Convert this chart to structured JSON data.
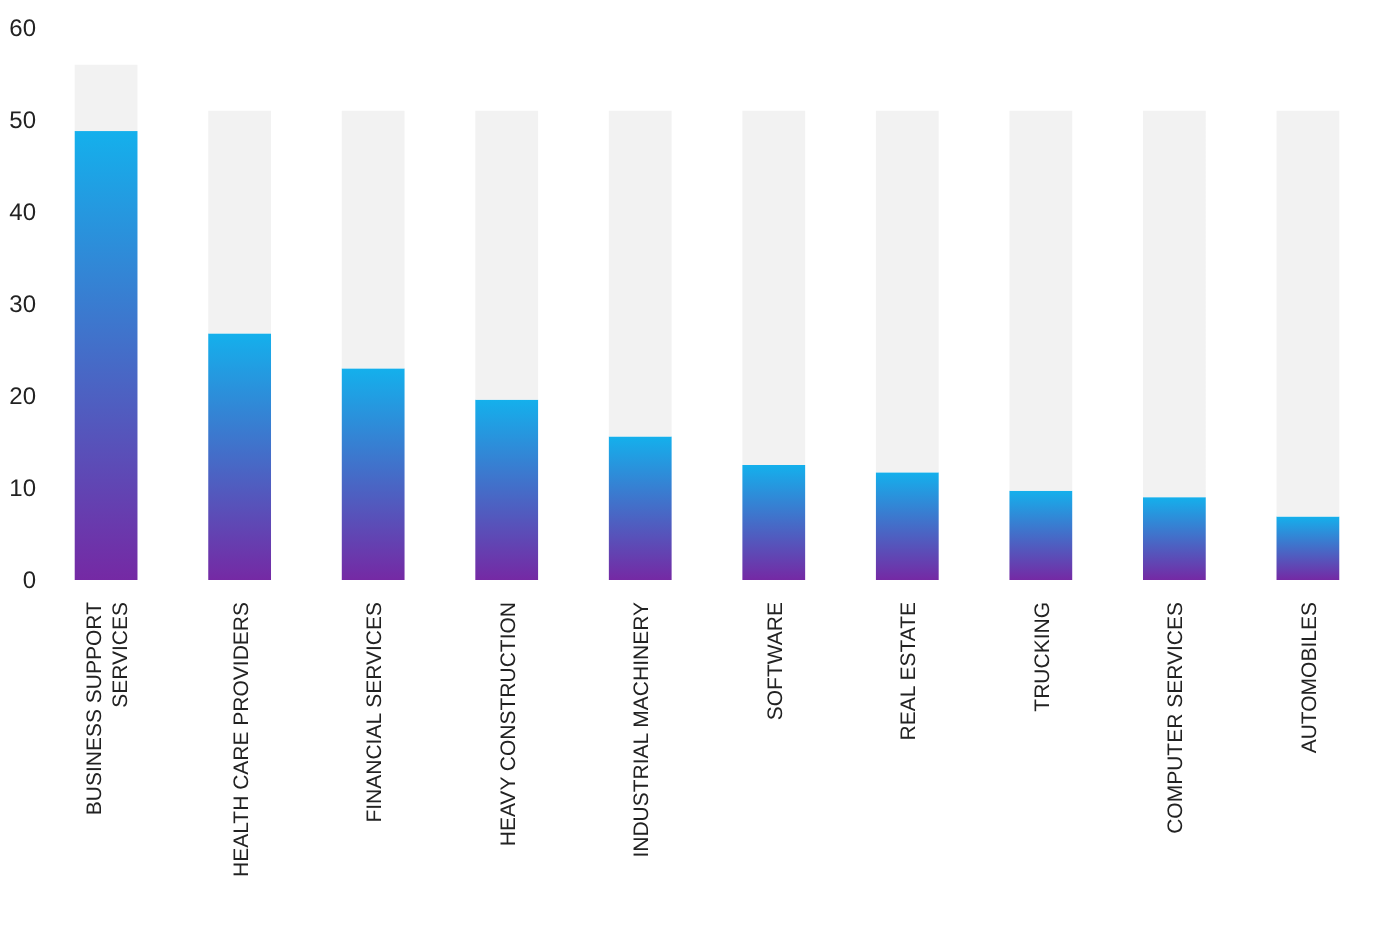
{
  "chart_data": {
    "type": "bar",
    "stacked": true,
    "categories": [
      "BUSINESS SUPPORT\nSERVICES",
      "HEALTH CARE PROVIDERS",
      "FINANCIAL SERVICES",
      "HEAVY CONSTRUCTION",
      "INDUSTRIAL MACHINERY",
      "SOFTWARE",
      "REAL ESTATE",
      "TRUCKING",
      "COMPUTER SERVICES",
      "AUTOMOBILES"
    ],
    "series": [
      {
        "color": "#14b0ec",
        "values": [
          48.8,
          26.8,
          23.0,
          19.6,
          15.6,
          12.5,
          11.7,
          9.7,
          9.0,
          6.9
        ]
      },
      {
        "color": "#f2f2f2",
        "values": [
          7.2,
          24.2,
          28.0,
          31.4,
          35.4,
          38.5,
          39.3,
          41.3,
          42.0,
          44.1
        ]
      }
    ],
    "ylim": [
      0,
      60
    ],
    "yticks": [
      0,
      10,
      20,
      30,
      40,
      50,
      60
    ]
  }
}
